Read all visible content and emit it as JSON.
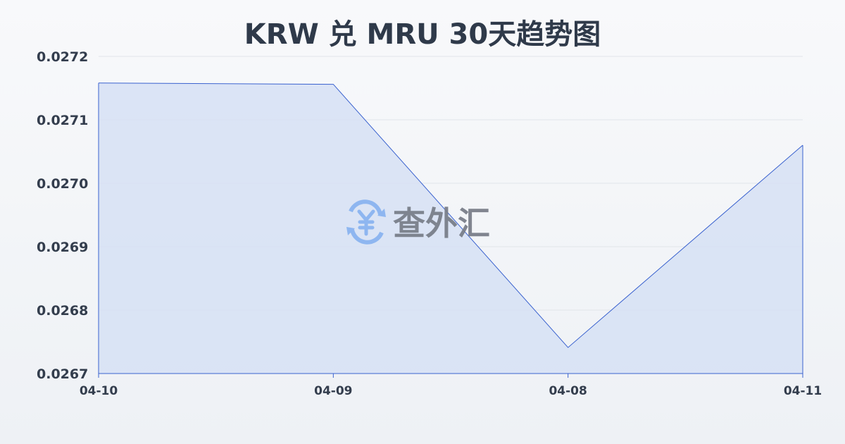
{
  "chart_data": {
    "type": "area",
    "title": "KRW 兑 MRU 30天趋势图",
    "xlabel": "",
    "ylabel": "",
    "categories": [
      "04-10",
      "04-09",
      "04-08",
      "04-11"
    ],
    "values": [
      0.027158,
      0.027156,
      0.026741,
      0.02706
    ],
    "ylim": [
      0.0267,
      0.0272
    ],
    "yticks": [
      "0.0267",
      "0.0268",
      "0.0269",
      "0.0270",
      "0.0271",
      "0.0272"
    ],
    "grid": true,
    "line_color": "#3a62cf",
    "fill_color": "#d6e1f5"
  },
  "watermark": {
    "text": "查外汇",
    "icon": "yen-exchange-icon",
    "icon_color": "#8ab4f0",
    "text_color": "#7a7f8a"
  }
}
